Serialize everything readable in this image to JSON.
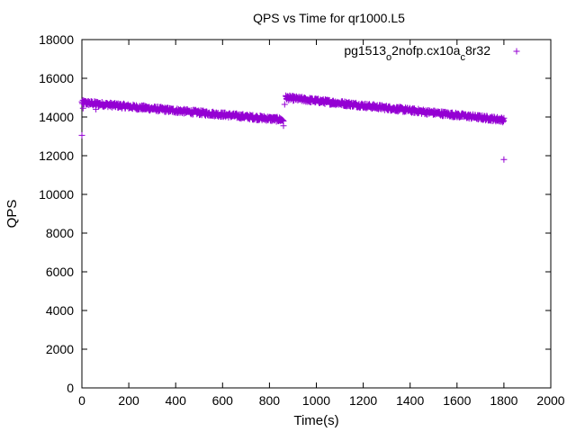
{
  "chart_data": {
    "type": "scatter",
    "title": "QPS vs Time for qr1000.L5",
    "xlabel": "Time(s)",
    "ylabel": "QPS",
    "xlim": [
      0,
      2000
    ],
    "ylim": [
      0,
      18000
    ],
    "x_ticks": [
      0,
      200,
      400,
      600,
      800,
      1000,
      1200,
      1400,
      1600,
      1800,
      2000
    ],
    "y_ticks": [
      0,
      2000,
      4000,
      6000,
      8000,
      10000,
      12000,
      14000,
      16000,
      18000
    ],
    "grid": false,
    "legend_position": "top-right",
    "marker": "plus",
    "series": [
      {
        "name_parts": [
          "pg1513",
          "o",
          "2nofp.cx10a",
          "c",
          "8r32"
        ],
        "color": "#9400d3",
        "segments": [
          {
            "x_start": 0,
            "x_end": 860,
            "y_start": 14750,
            "y_end": 13850,
            "jitter": 120
          },
          {
            "x_start": 870,
            "x_end": 1800,
            "y_start": 15000,
            "y_end": 13850,
            "jitter": 120
          }
        ],
        "points": [
          [
            0,
            13050
          ],
          [
            5,
            14450
          ],
          [
            60,
            14400
          ],
          [
            860,
            13550
          ],
          [
            865,
            14650
          ],
          [
            1800,
            11800
          ]
        ]
      }
    ]
  }
}
